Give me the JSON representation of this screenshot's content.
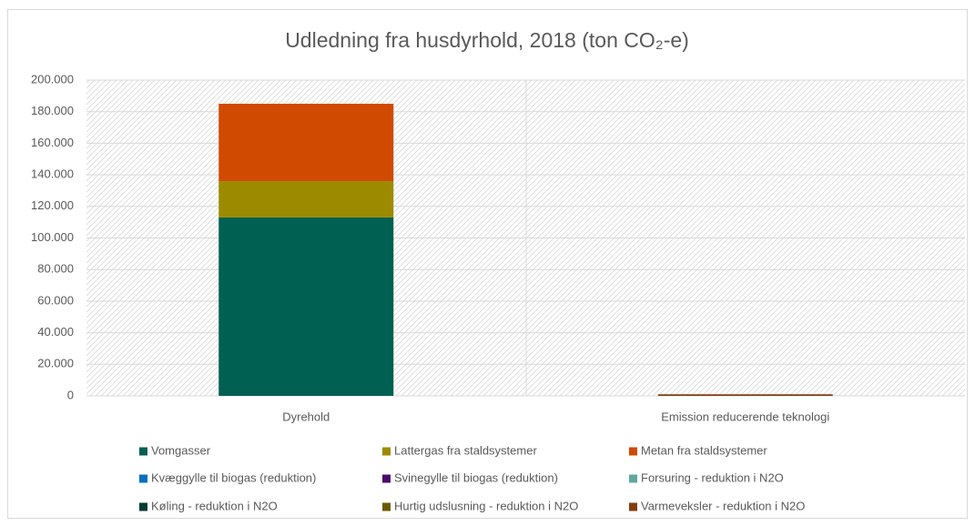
{
  "chart_data": {
    "type": "stacked_bar",
    "title": "Udledning fra husdyrhold, 2018 (ton CO₂-e)",
    "categories": [
      "Dyrehold",
      "Emission reducerende teknologi"
    ],
    "series": [
      {
        "name": "Vomgasser",
        "color": "#006052",
        "values": [
          113000,
          0
        ]
      },
      {
        "name": "Lattergas fra staldsystemer",
        "color": "#9c8b00",
        "values": [
          23000,
          0
        ]
      },
      {
        "name": "Metan fra staldsystemer",
        "color": "#d04a02",
        "values": [
          49000,
          0
        ]
      },
      {
        "name": "Kvæggylle til biogas (reduktion)",
        "color": "#0070c0",
        "values": [
          0,
          0
        ]
      },
      {
        "name": "Svinegylle til biogas (reduktion)",
        "color": "#4b0a6e",
        "values": [
          0,
          0
        ]
      },
      {
        "name": "Forsuring - reduktion i N2O",
        "color": "#5fa8a0",
        "values": [
          0,
          0
        ]
      },
      {
        "name": "Køling - reduktion i N2O",
        "color": "#003c32",
        "values": [
          0,
          0
        ]
      },
      {
        "name": "Hurtig udslusning - reduktion i N2O",
        "color": "#6b5a00",
        "values": [
          0,
          0
        ]
      },
      {
        "name": "Varmeveksler - reduktion i N2O",
        "color": "#843c0c",
        "values": [
          0,
          1000
        ]
      }
    ],
    "ylim": [
      0,
      200000
    ],
    "yticks": [
      0,
      {
        "value": 20000,
        "label": "20.000"
      },
      {
        "value": 40000,
        "label": "40.000"
      },
      {
        "value": 60000,
        "label": "60.000"
      },
      {
        "value": 80000,
        "label": "80.000"
      },
      {
        "value": 100000,
        "label": "100.000"
      },
      {
        "value": 120000,
        "label": "120.000"
      },
      {
        "value": 140000,
        "label": "140.000"
      },
      {
        "value": 160000,
        "label": "160.000"
      },
      {
        "value": 180000,
        "label": "180.000"
      },
      {
        "value": 200000,
        "label": "200.000"
      }
    ],
    "grid": true,
    "legend": "bottom"
  }
}
